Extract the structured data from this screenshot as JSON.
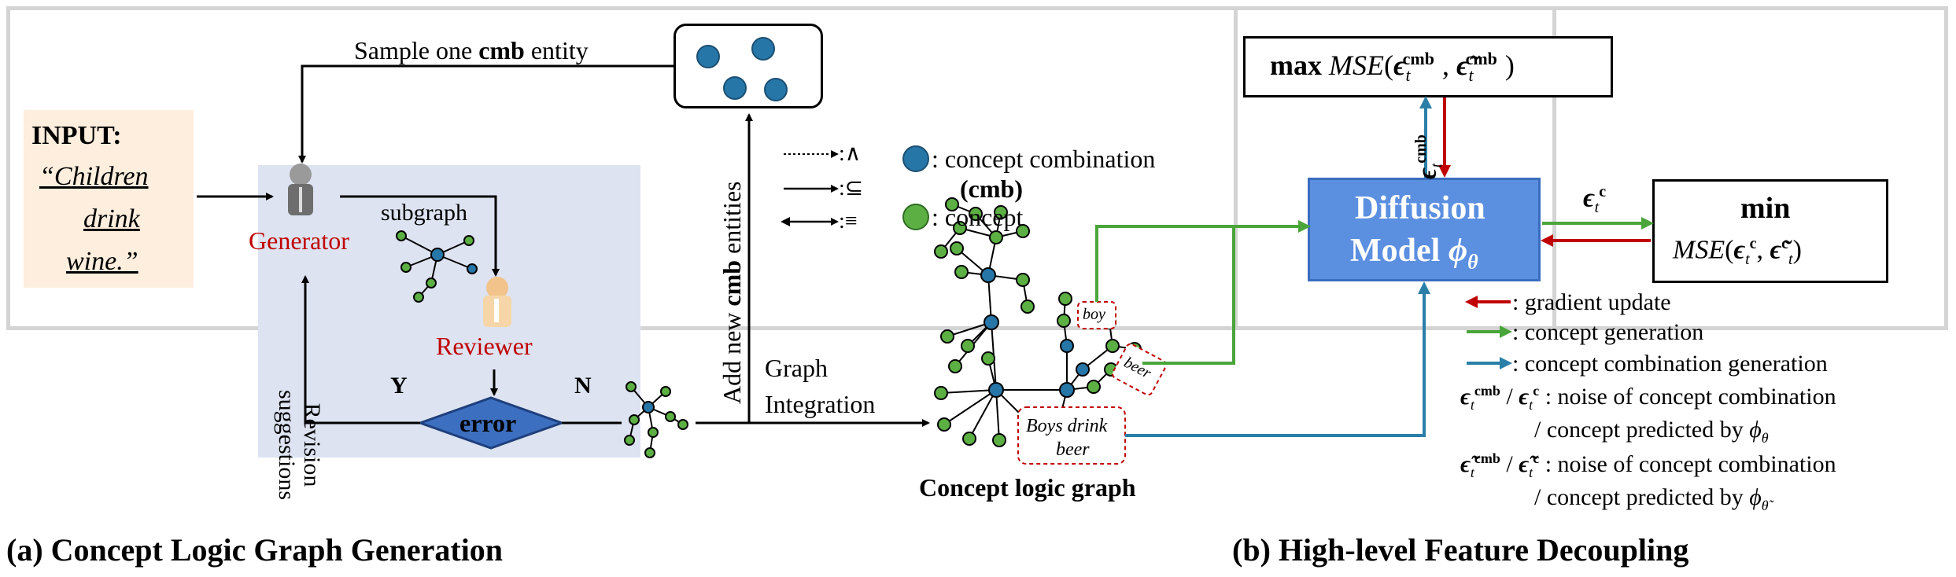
{
  "panel_a": {
    "caption": "(a) Concept Logic Graph Generation",
    "input_label": "INPUT:",
    "input_text_lines": [
      "“Children",
      "drink",
      "wine.”"
    ],
    "sample_label_pre": "Sample one ",
    "sample_label_bold": "cmb",
    "sample_label_post": " entity",
    "generator": "Generator",
    "reviewer": "Reviewer",
    "subgraph": "subgraph",
    "revision_line1": "Revision",
    "revision_line2": "suggestions",
    "yes": "Y",
    "no": "N",
    "error": "error",
    "add_new_pre": "Add new ",
    "add_new_bold": "cmb",
    "add_new_post": " entities",
    "graph_integration_line1": "Graph",
    "graph_integration_line2": "Integration",
    "legend_dotted": ":∧",
    "legend_single": ":⊆",
    "legend_double": ":≡",
    "legend_cmb_line1": ": concept combination",
    "legend_cmb_line2": "(cmb)",
    "legend_concept": ": concept",
    "concept_logic_graph": "Concept logic graph",
    "label_boy": "boy",
    "label_beer": "beer",
    "label_boys_line1": "Boys drink",
    "label_boys_line2": "beer"
  },
  "panel_b": {
    "caption": "(b) High-level Feature Decoupling",
    "max_label": "max",
    "mse": "MSE",
    "min_label": "min",
    "diffusion_line1": "Diffusion",
    "diffusion_line2": "Model",
    "legend_gradient": ": gradient update",
    "legend_concept_gen": ": concept generation",
    "legend_cmb_gen": ": concept combination generation",
    "noise_line1": ": noise of concept combination",
    "noise_line2": "/ concept predicted by",
    "noise_line3": ": noise of concept combination",
    "noise_line4": "/ concept predicted by"
  },
  "colors": {
    "red": "#c00000",
    "green": "#4aa53a",
    "teal": "#2a7fa8",
    "node_blue": "#2776a8",
    "node_green": "#5cb043",
    "diffusion": "#5b8fe0"
  }
}
